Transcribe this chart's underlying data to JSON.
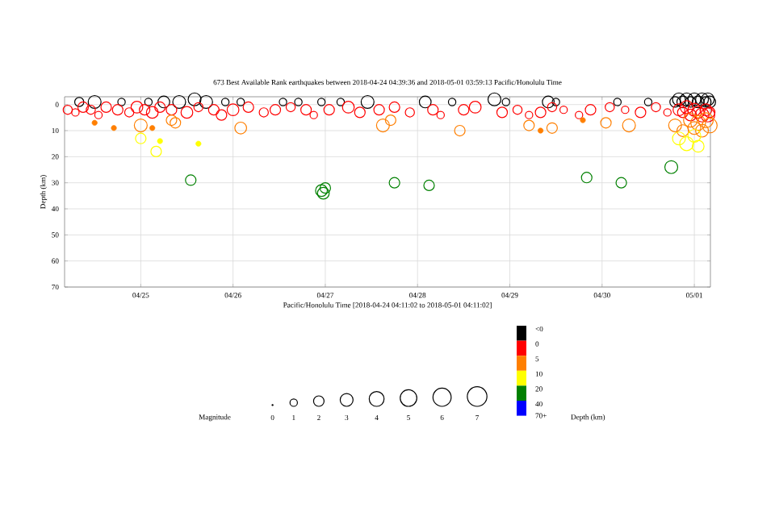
{
  "chart_data": {
    "type": "bubble",
    "title": "673 Best Available Rank earthquakes between 2018-04-24 04:39:36 and 2018-05-01 03:59:13 Pacific/Honolulu Time",
    "xlabel": "Pacific/Honolulu Time [2018-04-24 04:11:02 to 2018-05-01 04:11:02]",
    "ylabel": "Depth (km)",
    "legend_title": "Magnitude",
    "annotations": [
      "70+",
      "Depth (km)"
    ],
    "legend": "bottom",
    "xlim": [
      "2018-04-24T04:11",
      "2018-05-01T04:11"
    ],
    "xticks": [
      {
        "value": "2018-04-25",
        "label": "04/25"
      },
      {
        "value": "2018-04-26",
        "label": "04/26"
      },
      {
        "value": "2018-04-27",
        "label": "04/27"
      },
      {
        "value": "2018-04-28",
        "label": "04/28"
      },
      {
        "value": "2018-04-29",
        "label": "04/29"
      },
      {
        "value": "2018-04-30",
        "label": "04/30"
      },
      {
        "value": "2018-05-01",
        "label": "05/01"
      }
    ],
    "ylim": [
      70,
      -3
    ],
    "yticks": [
      0,
      10,
      20,
      30,
      40,
      50,
      60,
      70
    ],
    "grid": true,
    "marker": "circle",
    "size_legend": [
      0,
      1,
      2,
      3,
      4,
      5,
      6,
      7
    ],
    "series": [
      {
        "name": "<0",
        "color": "#000000",
        "x": [
          "2018-04-24T08:00",
          "2018-04-24T12:00",
          "2018-04-24T19:00",
          "2018-04-25T02:00",
          "2018-04-25T06:00",
          "2018-04-25T10:00",
          "2018-04-25T14:00",
          "2018-04-25T17:00",
          "2018-04-25T22:00",
          "2018-04-26T02:00",
          "2018-04-26T13:00",
          "2018-04-26T17:00",
          "2018-04-26T23:00",
          "2018-04-27T04:00",
          "2018-04-27T11:00",
          "2018-04-28T02:00",
          "2018-04-28T09:00",
          "2018-04-28T20:00",
          "2018-04-28T23:00",
          "2018-04-29T10:00",
          "2018-04-29T12:00",
          "2018-04-30T04:00",
          "2018-04-30T12:00",
          "2018-04-30T19:00",
          "2018-04-30T20:00",
          "2018-04-30T21:00",
          "2018-04-30T22:00",
          "2018-04-30T23:00",
          "2018-05-01T00:00",
          "2018-05-01T01:00",
          "2018-05-01T02:00",
          "2018-05-01T03:00",
          "2018-05-01T03:30",
          "2018-05-01T04:00"
        ],
        "values": [
          -1,
          -1,
          -1,
          -1,
          -1,
          -1,
          -2,
          -1,
          -1,
          -1,
          -1,
          -1,
          -1,
          -1,
          -1,
          -1,
          -1,
          -2,
          -1,
          -1,
          -1,
          -1,
          -1,
          -1,
          -2,
          -1,
          -2,
          -1,
          -2,
          -1,
          -2,
          -1,
          -2,
          -1
        ],
        "sizes": [
          1.5,
          3,
          1,
          1,
          2.5,
          3,
          3,
          3,
          1,
          1,
          1,
          1,
          1,
          1,
          3,
          2.5,
          1,
          3,
          1,
          2.5,
          1,
          1,
          1,
          2,
          3,
          2.5,
          3,
          2,
          3,
          2.5,
          3,
          2,
          3,
          2.5
        ]
      },
      {
        "name": "0",
        "color": "#ff0000",
        "x": [
          "2018-04-24T05:00",
          "2018-04-24T07:00",
          "2018-04-24T09:00",
          "2018-04-24T11:00",
          "2018-04-24T13:00",
          "2018-04-24T15:00",
          "2018-04-24T18:00",
          "2018-04-24T21:00",
          "2018-04-24T23:00",
          "2018-04-25T01:00",
          "2018-04-25T03:00",
          "2018-04-25T05:00",
          "2018-04-25T08:00",
          "2018-04-25T12:00",
          "2018-04-25T15:00",
          "2018-04-25T19:00",
          "2018-04-25T21:00",
          "2018-04-26T00:00",
          "2018-04-26T04:00",
          "2018-04-26T08:00",
          "2018-04-26T11:00",
          "2018-04-26T15:00",
          "2018-04-26T19:00",
          "2018-04-26T21:00",
          "2018-04-27T01:00",
          "2018-04-27T06:00",
          "2018-04-27T09:00",
          "2018-04-27T14:00",
          "2018-04-27T18:00",
          "2018-04-27T22:00",
          "2018-04-28T04:00",
          "2018-04-28T06:00",
          "2018-04-28T12:00",
          "2018-04-28T15:00",
          "2018-04-28T22:00",
          "2018-04-29T02:00",
          "2018-04-29T05:00",
          "2018-04-29T08:00",
          "2018-04-29T11:00",
          "2018-04-29T14:00",
          "2018-04-29T18:00",
          "2018-04-29T21:00",
          "2018-04-30T02:00",
          "2018-04-30T06:00",
          "2018-04-30T10:00",
          "2018-04-30T14:00",
          "2018-04-30T17:00",
          "2018-04-30T20:00",
          "2018-04-30T21:00",
          "2018-04-30T22:00",
          "2018-04-30T23:00",
          "2018-05-01T00:00",
          "2018-05-01T01:00",
          "2018-05-01T02:00",
          "2018-05-01T03:00",
          "2018-05-01T03:30",
          "2018-05-01T04:00"
        ],
        "values": [
          2,
          3,
          1,
          2,
          4,
          1,
          2,
          3,
          1,
          2,
          3,
          1,
          2,
          3,
          1,
          2,
          4,
          2,
          1,
          3,
          2,
          1,
          2,
          4,
          2,
          1,
          3,
          2,
          1,
          3,
          2,
          4,
          2,
          1,
          3,
          2,
          4,
          3,
          1,
          2,
          4,
          2,
          1,
          2,
          3,
          1,
          3,
          2,
          3,
          1,
          4,
          2,
          3,
          4,
          2,
          4,
          3
        ],
        "sizes": [
          1.5,
          1,
          2,
          1.5,
          1,
          2,
          2,
          1.5,
          2.5,
          2,
          2.5,
          2,
          2,
          2.5,
          1.5,
          2,
          2,
          2.5,
          2,
          1.5,
          2,
          1.5,
          2,
          1,
          2,
          2.5,
          2,
          2,
          2,
          1.5,
          2,
          1,
          2,
          2.5,
          2,
          1.5,
          1,
          2,
          1.5,
          1,
          1,
          2,
          1.5,
          1,
          2,
          1.5,
          1,
          2.5,
          2,
          3,
          2.5,
          3,
          2.5,
          3.5,
          2.5,
          3.5,
          2
        ]
      },
      {
        "name": "5",
        "color": "#ff7f00",
        "x": [
          "2018-04-24T12:00",
          "2018-04-24T17:00",
          "2018-04-25T00:00",
          "2018-04-25T03:00",
          "2018-04-25T08:00",
          "2018-04-25T09:00",
          "2018-04-26T02:00",
          "2018-04-27T15:00",
          "2018-04-27T17:00",
          "2018-04-28T11:00",
          "2018-04-29T05:00",
          "2018-04-29T08:00",
          "2018-04-29T11:00",
          "2018-04-29T19:00",
          "2018-04-30T01:00",
          "2018-04-30T07:00",
          "2018-04-30T19:00",
          "2018-04-30T21:00",
          "2018-04-30T23:00",
          "2018-05-01T00:00",
          "2018-05-01T01:00",
          "2018-05-01T02:00",
          "2018-05-01T03:00",
          "2018-05-01T04:00"
        ],
        "values": [
          7,
          9,
          8,
          9,
          6,
          7,
          9,
          8,
          6,
          10,
          8,
          10,
          9,
          6,
          7,
          8,
          8,
          10,
          6,
          9,
          7,
          10,
          6,
          8
        ],
        "sizes": [
          0.5,
          0.5,
          3,
          0.5,
          2,
          2,
          2.5,
          3,
          2,
          2,
          2,
          0.5,
          2,
          0.5,
          2,
          3,
          3,
          2.5,
          3.5,
          3,
          4,
          3,
          4,
          4
        ]
      },
      {
        "name": "10",
        "color": "#ffff00",
        "x": [
          "2018-04-25T00:00",
          "2018-04-25T04:00",
          "2018-04-25T05:00",
          "2018-04-25T15:00",
          "2018-04-30T20:00",
          "2018-04-30T22:00",
          "2018-05-01T00:00",
          "2018-05-01T01:00"
        ],
        "values": [
          13,
          18,
          14,
          15,
          13,
          15,
          12,
          16
        ],
        "sizes": [
          2,
          2,
          0.5,
          0.5,
          3,
          3.5,
          3,
          2.5
        ]
      },
      {
        "name": "20",
        "color": "#008000",
        "x": [
          "2018-04-25T13:00",
          "2018-04-26T23:00",
          "2018-04-26T23:30",
          "2018-04-27T00:00",
          "2018-04-27T18:00",
          "2018-04-28T03:00",
          "2018-04-29T20:00",
          "2018-04-30T05:00",
          "2018-04-30T18:00"
        ],
        "values": [
          29,
          33,
          34,
          32,
          30,
          31,
          28,
          30,
          24
        ],
        "sizes": [
          2,
          2.5,
          2.5,
          2,
          2,
          2,
          2,
          2,
          3
        ]
      },
      {
        "name": "40",
        "color": "#0000ff"
      }
    ]
  }
}
